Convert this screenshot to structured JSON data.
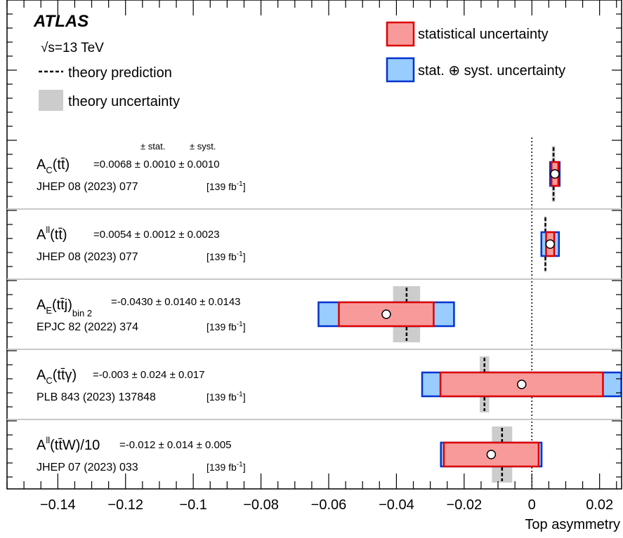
{
  "chart_data": {
    "type": "summary-plot",
    "experiment": "ATLAS",
    "energy": "√s=13 TeV",
    "xlabel": "Top asymmetry",
    "xlim": [
      -0.155,
      0.0265
    ],
    "xticks": [
      -0.14,
      -0.12,
      -0.1,
      -0.08,
      -0.06,
      -0.04,
      -0.02,
      0,
      0.02
    ],
    "xtick_labels": [
      "−0.14",
      "−0.12",
      "−0.1",
      "−0.08",
      "−0.06",
      "−0.04",
      "−0.02",
      "0",
      "0.02"
    ],
    "reference_line": 0,
    "legend": {
      "stat": "statistical uncertainty",
      "total": "stat. ⊕ syst. uncertainty",
      "theory_pred": "theory prediction",
      "theory_unc": "theory uncertainty"
    },
    "column_headers": {
      "stat": "± stat.",
      "syst": "± syst."
    },
    "colors": {
      "stat_fill": "#f99a9a",
      "stat_edge": "#dd0000",
      "total_fill": "#99ccff",
      "total_edge": "#0033cc",
      "theory": "#cccccc"
    },
    "measurements": [
      {
        "label_base": "A",
        "label_sub": "C",
        "label_arg": "(tt̄)",
        "label_sub2": "",
        "value": 0.0068,
        "stat": 0.001,
        "syst": 0.001,
        "value_text": "=0.0068 ± 0.0010 ± 0.0010",
        "reference": "JHEP 08 (2023) 077",
        "lumi": "[139 fb",
        "lumi_sup": "-1",
        "lumi_end": "]",
        "theory": 0.0064,
        "theory_unc": 0.0005
      },
      {
        "label_base": "A",
        "label_sup": "ll",
        "label_arg": "(tt̄)",
        "label_sub2": "",
        "value": 0.0054,
        "stat": 0.0012,
        "syst": 0.0023,
        "value_text": "=0.0054 ± 0.0012 ± 0.0023",
        "reference": "JHEP 08 (2023) 077",
        "lumi": "[139 fb",
        "lumi_sup": "-1",
        "lumi_end": "]",
        "theory": 0.004,
        "theory_unc": 0.0003
      },
      {
        "label_base": "A",
        "label_sub": "E",
        "label_arg": "(tt̄j)",
        "label_sub2": "bin 2",
        "value": -0.043,
        "stat": 0.014,
        "syst": 0.0143,
        "value_text": "=-0.0430 ± 0.0140 ± 0.0143",
        "reference": "EPJC 82 (2022) 374",
        "lumi": "[139 fb",
        "lumi_sup": "-1",
        "lumi_end": "]",
        "theory": -0.037,
        "theory_unc": 0.004
      },
      {
        "label_base": "A",
        "label_sub": "C",
        "label_arg": "(tt̄γ)",
        "label_sub2": "",
        "value": -0.003,
        "stat": 0.024,
        "syst": 0.017,
        "value_text": "=-0.003 ± 0.024 ± 0.017",
        "reference": "PLB 843 (2023) 137848",
        "lumi": "[139 fb",
        "lumi_sup": "-1",
        "lumi_end": "]",
        "theory": -0.014,
        "theory_unc": 0.0014
      },
      {
        "label_base": "A",
        "label_sup": "ll",
        "label_arg": "(tt̄W)/10",
        "label_sub2": "",
        "value": -0.012,
        "stat": 0.014,
        "syst": 0.005,
        "value_text": "=-0.012 ± 0.014 ± 0.005",
        "reference": "JHEP 07 (2023) 033",
        "lumi": "[139 fb",
        "lumi_sup": "-1",
        "lumi_end": "]",
        "theory": -0.0088,
        "theory_unc": 0.003
      }
    ]
  }
}
